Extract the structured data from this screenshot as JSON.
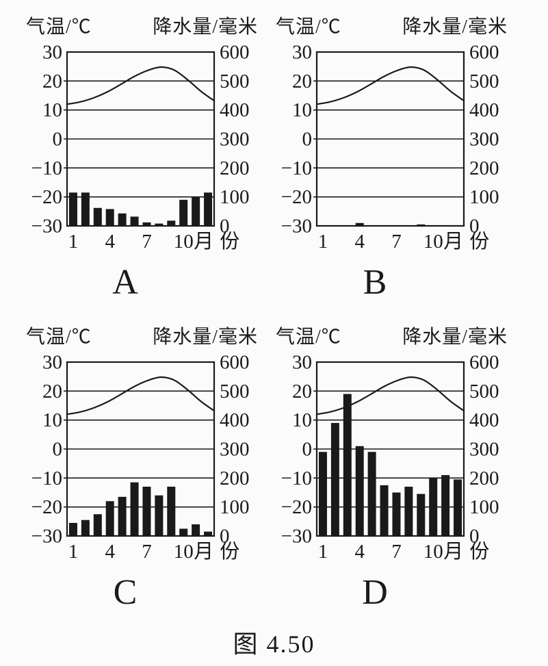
{
  "page": {
    "caption": "图 4.50",
    "background": "#fbfbfb",
    "ink": "#1a1a1a"
  },
  "axes": {
    "temp_axis_title": "气温/℃",
    "precip_axis_title": "降水量/毫米",
    "temp_ticks": [
      30,
      20,
      10,
      0,
      -10,
      -20,
      -30
    ],
    "precip_ticks": [
      600,
      500,
      400,
      300,
      200,
      100,
      0
    ],
    "temp_range": [
      -30,
      30
    ],
    "precip_range": [
      0,
      600
    ],
    "month_tick_labels": [
      "1",
      "4",
      "7",
      "10"
    ],
    "month_tick_positions": [
      1,
      4,
      7,
      10
    ],
    "month_suffix": "月份",
    "grid": true,
    "legend": "none"
  },
  "chart_data": [
    {
      "id": "A",
      "letter": "A",
      "type": "climate-bar-line",
      "months": [
        1,
        2,
        3,
        4,
        5,
        6,
        7,
        8,
        9,
        10,
        11,
        12
      ],
      "temperature_c": [
        12,
        12.8,
        14.2,
        16.2,
        18.8,
        21.5,
        23.6,
        24.8,
        23.8,
        20.5,
        16.5,
        13.2
      ],
      "precipitation_mm": [
        115,
        115,
        62,
        58,
        43,
        32,
        12,
        8,
        18,
        90,
        98,
        115
      ]
    },
    {
      "id": "B",
      "letter": "B",
      "type": "climate-bar-line",
      "months": [
        1,
        2,
        3,
        4,
        5,
        6,
        7,
        8,
        9,
        10,
        11,
        12
      ],
      "temperature_c": [
        12,
        12.8,
        14.2,
        16.2,
        18.8,
        21.5,
        23.6,
        24.8,
        23.8,
        20.5,
        16.5,
        13.2
      ],
      "precipitation_mm": [
        0,
        0,
        0,
        10,
        0,
        0,
        0,
        0,
        5,
        0,
        0,
        0
      ]
    },
    {
      "id": "C",
      "letter": "C",
      "type": "climate-bar-line",
      "months": [
        1,
        2,
        3,
        4,
        5,
        6,
        7,
        8,
        9,
        10,
        11,
        12
      ],
      "temperature_c": [
        12,
        12.8,
        14.2,
        16.2,
        18.8,
        21.5,
        23.6,
        24.8,
        23.8,
        20.5,
        16.5,
        13.2
      ],
      "precipitation_mm": [
        45,
        55,
        75,
        120,
        135,
        185,
        170,
        140,
        170,
        25,
        40,
        15
      ]
    },
    {
      "id": "D",
      "letter": "D",
      "type": "climate-bar-line",
      "months": [
        1,
        2,
        3,
        4,
        5,
        6,
        7,
        8,
        9,
        10,
        11,
        12
      ],
      "temperature_c": [
        12,
        12.8,
        14.2,
        16.2,
        18.8,
        21.5,
        23.6,
        24.8,
        23.8,
        20.5,
        16.5,
        13.2
      ],
      "precipitation_mm": [
        290,
        390,
        490,
        310,
        290,
        175,
        150,
        170,
        145,
        200,
        210,
        195
      ]
    }
  ]
}
